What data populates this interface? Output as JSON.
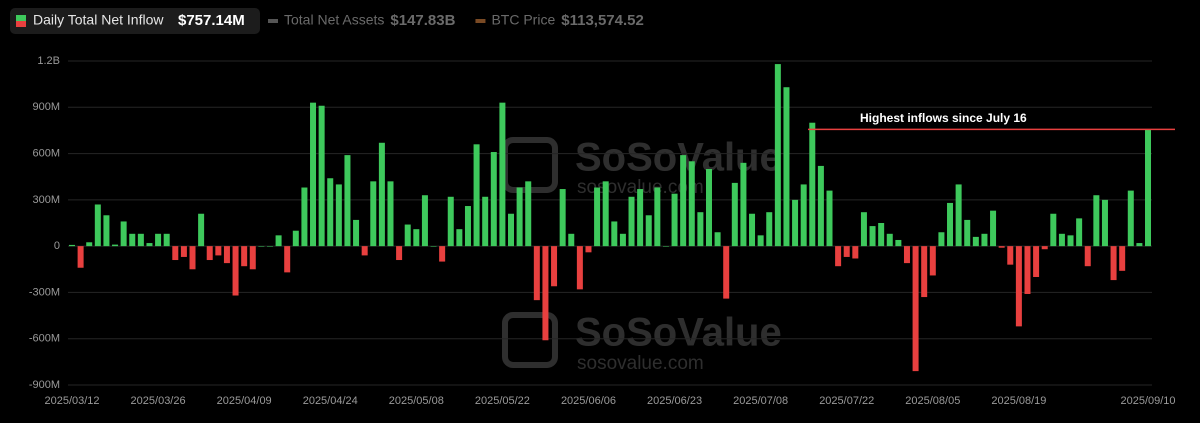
{
  "chart_data": {
    "type": "bar",
    "series": [
      {
        "name": "Daily Total Net Inflow",
        "color": "#3ec95c",
        "negative_color": "#e8403f",
        "values": [
          8,
          -140,
          25,
          270,
          200,
          10,
          160,
          80,
          80,
          20,
          80,
          80,
          -90,
          -70,
          -150,
          210,
          -90,
          -60,
          -110,
          -320,
          -130,
          -150,
          0,
          0,
          70,
          -170,
          100,
          380,
          930,
          910,
          440,
          400,
          590,
          170,
          -60,
          420,
          670,
          420,
          -90,
          140,
          110,
          330,
          0,
          -100,
          320,
          110,
          260,
          660,
          320,
          610,
          930,
          210,
          380,
          420,
          -350,
          -610,
          -260,
          370,
          80,
          -280,
          -40,
          380,
          420,
          160,
          80,
          320,
          370,
          200,
          380,
          0,
          340,
          590,
          550,
          220,
          500,
          90,
          -340,
          410,
          540,
          210,
          70,
          220,
          1180,
          1030,
          300,
          400,
          800,
          520,
          360,
          -130,
          -70,
          -80,
          220,
          130,
          150,
          80,
          40,
          -110,
          -810,
          -330,
          -190,
          90,
          280,
          400,
          170,
          60,
          80,
          230,
          -10,
          -120,
          -520,
          -310,
          -200,
          -20,
          210,
          80,
          70,
          180,
          -130,
          330,
          300,
          -220,
          -160,
          360,
          20,
          757.14
        ]
      }
    ],
    "summary_label": "$757.14M",
    "header": [
      {
        "name": "Total Net Assets",
        "value": "$147.83B",
        "color": "#555555"
      },
      {
        "name": "BTC Price",
        "value": "$113,574.52",
        "color": "#7a4a24"
      }
    ],
    "annotation": "Highest inflows since July 16",
    "watermark": {
      "brand": "SoSoValue",
      "site": "sosovalue.com"
    },
    "categories": [
      "2025/03/12",
      null,
      null,
      null,
      null,
      null,
      null,
      null,
      null,
      null,
      "2025/03/26",
      null,
      null,
      null,
      null,
      null,
      null,
      null,
      null,
      null,
      "2025/04/09",
      null,
      null,
      null,
      null,
      null,
      null,
      null,
      null,
      null,
      "2025/04/24",
      null,
      null,
      null,
      null,
      null,
      null,
      null,
      null,
      null,
      "2025/05/08",
      null,
      null,
      null,
      null,
      null,
      null,
      null,
      null,
      null,
      "2025/05/22",
      null,
      null,
      null,
      null,
      null,
      null,
      null,
      null,
      null,
      "2025/06/06",
      null,
      null,
      null,
      null,
      null,
      null,
      null,
      null,
      null,
      "2025/06/23",
      null,
      null,
      null,
      null,
      null,
      null,
      null,
      null,
      null,
      "2025/07/08",
      null,
      null,
      null,
      null,
      null,
      null,
      null,
      null,
      null,
      "2025/07/22",
      null,
      null,
      null,
      null,
      null,
      null,
      null,
      null,
      null,
      "2025/08/05",
      null,
      null,
      null,
      null,
      null,
      null,
      null,
      null,
      null,
      "2025/08/19",
      null,
      null,
      null,
      null,
      null,
      null,
      null,
      null,
      null,
      null,
      null,
      null,
      null,
      null,
      "2025/09/10"
    ],
    "ylim": [
      -900,
      1200
    ],
    "yticks": [
      {
        "value": 1200,
        "label": "1.2B"
      },
      {
        "value": 900,
        "label": "900M"
      },
      {
        "value": 600,
        "label": "600M"
      },
      {
        "value": 300,
        "label": "300M"
      },
      0,
      {
        "value": -300,
        "label": "-300M"
      },
      {
        "value": -600,
        "label": "-600M"
      },
      {
        "value": -900,
        "label": "-900M"
      }
    ],
    "grid": true
  }
}
